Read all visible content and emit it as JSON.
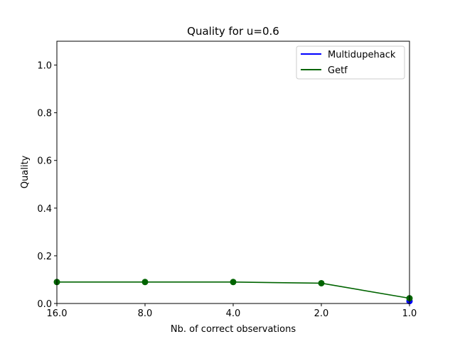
{
  "chart_data": {
    "type": "line",
    "title": "Quality for u=0.6",
    "xlabel": "Nb. of correct observations",
    "ylabel": "Quality",
    "x_scale": "log2-reversed",
    "x": [
      16.0,
      8.0,
      4.0,
      2.0,
      1.0
    ],
    "xlim": [
      16.0,
      1.0
    ],
    "xticks": [
      "16.0",
      "8.0",
      "4.0",
      "2.0",
      "1.0"
    ],
    "ylim": [
      0.0,
      1.1
    ],
    "yticks": [
      0.0,
      0.2,
      0.4,
      0.6,
      0.8,
      1.0
    ],
    "ytick_labels": [
      "0.0",
      "0.2",
      "0.4",
      "0.6",
      "0.8",
      "1.0"
    ],
    "grid": false,
    "legend_placement": "top-right",
    "series": [
      {
        "name": "Multidupehack",
        "color": "#0000ff",
        "values": [
          null,
          null,
          null,
          null,
          0.01
        ]
      },
      {
        "name": "Getf",
        "color": "#006400",
        "values": [
          0.09,
          0.09,
          0.09,
          0.085,
          0.022
        ]
      }
    ]
  }
}
